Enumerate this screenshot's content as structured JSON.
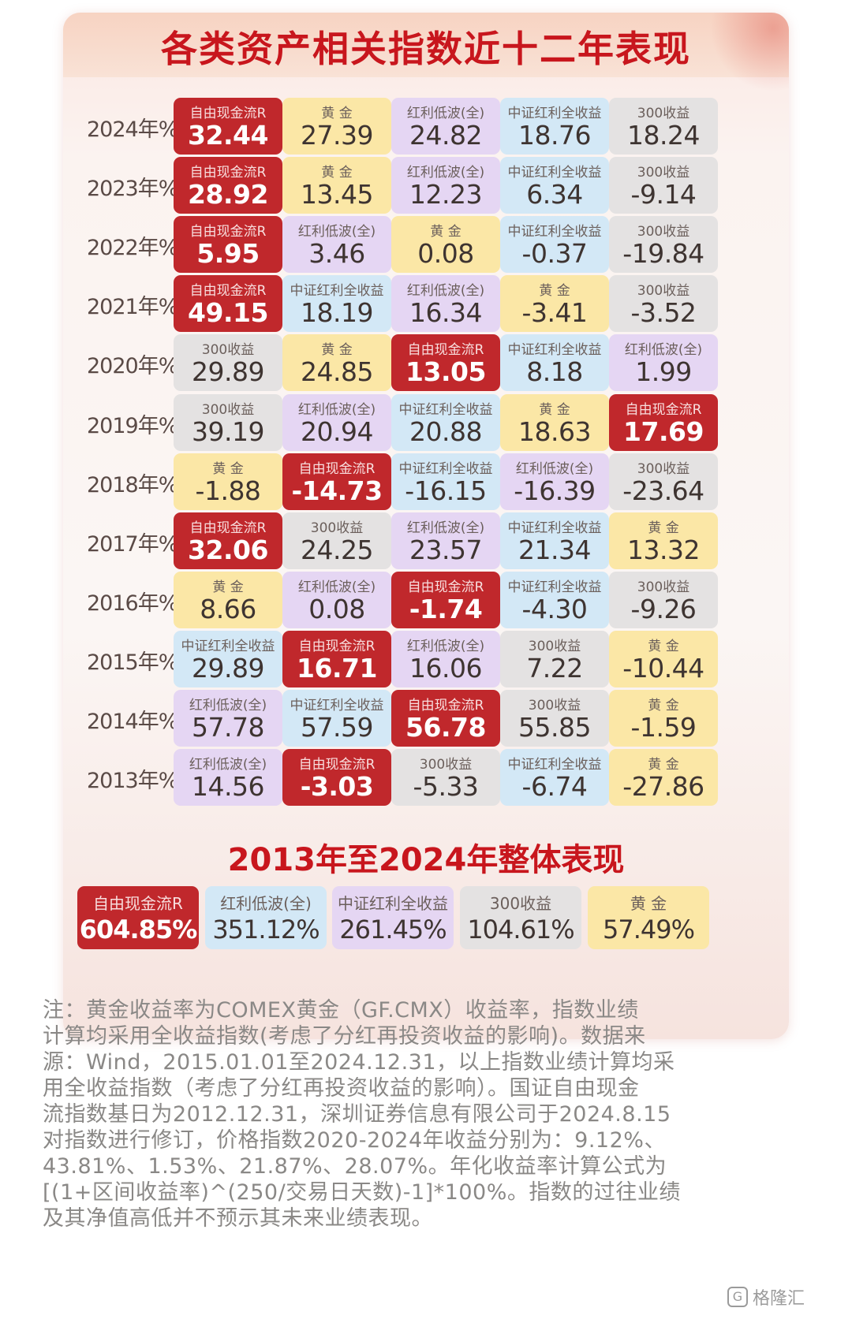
{
  "title": "各类资产相关指数近十二年表现",
  "rows": [
    {
      "year": "2024年%",
      "cells": [
        {
          "name": "自由现金流R",
          "value": "32.44",
          "color": "red"
        },
        {
          "name": "黄 金",
          "value": "27.39",
          "color": "gold"
        },
        {
          "name": "红利低波(全)",
          "value": "24.82",
          "color": "purple"
        },
        {
          "name": "中证红利全收益",
          "value": "18.76",
          "color": "blue"
        },
        {
          "name": "300收益",
          "value": "18.24",
          "color": "gray"
        }
      ]
    },
    {
      "year": "2023年%",
      "cells": [
        {
          "name": "自由现金流R",
          "value": "28.92",
          "color": "red"
        },
        {
          "name": "黄 金",
          "value": "13.45",
          "color": "gold"
        },
        {
          "name": "红利低波(全)",
          "value": "12.23",
          "color": "purple"
        },
        {
          "name": "中证红利全收益",
          "value": "6.34",
          "color": "blue"
        },
        {
          "name": "300收益",
          "value": "-9.14",
          "color": "gray"
        }
      ]
    },
    {
      "year": "2022年%",
      "cells": [
        {
          "name": "自由现金流R",
          "value": "5.95",
          "color": "red"
        },
        {
          "name": "红利低波(全)",
          "value": "3.46",
          "color": "purple"
        },
        {
          "name": "黄 金",
          "value": "0.08",
          "color": "gold"
        },
        {
          "name": "中证红利全收益",
          "value": "-0.37",
          "color": "blue"
        },
        {
          "name": "300收益",
          "value": "-19.84",
          "color": "gray"
        }
      ]
    },
    {
      "year": "2021年%",
      "cells": [
        {
          "name": "自由现金流R",
          "value": "49.15",
          "color": "red"
        },
        {
          "name": "中证红利全收益",
          "value": "18.19",
          "color": "blue"
        },
        {
          "name": "红利低波(全)",
          "value": "16.34",
          "color": "purple"
        },
        {
          "name": "黄 金",
          "value": "-3.41",
          "color": "gold"
        },
        {
          "name": "300收益",
          "value": "-3.52",
          "color": "gray"
        }
      ]
    },
    {
      "year": "2020年%",
      "cells": [
        {
          "name": "300收益",
          "value": "29.89",
          "color": "gray"
        },
        {
          "name": "黄 金",
          "value": "24.85",
          "color": "gold"
        },
        {
          "name": "自由现金流R",
          "value": "13.05",
          "color": "red"
        },
        {
          "name": "中证红利全收益",
          "value": "8.18",
          "color": "blue"
        },
        {
          "name": "红利低波(全)",
          "value": "1.99",
          "color": "purple"
        }
      ]
    },
    {
      "year": "2019年%",
      "cells": [
        {
          "name": "300收益",
          "value": "39.19",
          "color": "gray"
        },
        {
          "name": "红利低波(全)",
          "value": "20.94",
          "color": "purple"
        },
        {
          "name": "中证红利全收益",
          "value": "20.88",
          "color": "blue"
        },
        {
          "name": "黄 金",
          "value": "18.63",
          "color": "gold"
        },
        {
          "name": "自由现金流R",
          "value": "17.69",
          "color": "red"
        }
      ]
    },
    {
      "year": "2018年%",
      "cells": [
        {
          "name": "黄 金",
          "value": "-1.88",
          "color": "gold"
        },
        {
          "name": "自由现金流R",
          "value": "-14.73",
          "color": "red"
        },
        {
          "name": "中证红利全收益",
          "value": "-16.15",
          "color": "blue"
        },
        {
          "name": "红利低波(全)",
          "value": "-16.39",
          "color": "purple"
        },
        {
          "name": "300收益",
          "value": "-23.64",
          "color": "gray"
        }
      ]
    },
    {
      "year": "2017年%",
      "cells": [
        {
          "name": "自由现金流R",
          "value": "32.06",
          "color": "red"
        },
        {
          "name": "300收益",
          "value": "24.25",
          "color": "gray"
        },
        {
          "name": "红利低波(全)",
          "value": "23.57",
          "color": "purple"
        },
        {
          "name": "中证红利全收益",
          "value": "21.34",
          "color": "blue"
        },
        {
          "name": "黄 金",
          "value": "13.32",
          "color": "gold"
        }
      ]
    },
    {
      "year": "2016年%",
      "cells": [
        {
          "name": "黄 金",
          "value": "8.66",
          "color": "gold"
        },
        {
          "name": "红利低波(全)",
          "value": "0.08",
          "color": "purple"
        },
        {
          "name": "自由现金流R",
          "value": "-1.74",
          "color": "red"
        },
        {
          "name": "中证红利全收益",
          "value": "-4.30",
          "color": "blue"
        },
        {
          "name": "300收益",
          "value": "-9.26",
          "color": "gray"
        }
      ]
    },
    {
      "year": "2015年%",
      "cells": [
        {
          "name": "中证红利全收益",
          "value": "29.89",
          "color": "blue"
        },
        {
          "name": "自由现金流R",
          "value": "16.71",
          "color": "red"
        },
        {
          "name": "红利低波(全)",
          "value": "16.06",
          "color": "purple"
        },
        {
          "name": "300收益",
          "value": "7.22",
          "color": "gray"
        },
        {
          "name": "黄 金",
          "value": "-10.44",
          "color": "gold"
        }
      ]
    },
    {
      "year": "2014年%",
      "cells": [
        {
          "name": "红利低波(全)",
          "value": "57.78",
          "color": "purple"
        },
        {
          "name": "中证红利全收益",
          "value": "57.59",
          "color": "blue"
        },
        {
          "name": "自由现金流R",
          "value": "56.78",
          "color": "red"
        },
        {
          "name": "300收益",
          "value": "55.85",
          "color": "gray"
        },
        {
          "name": "黄 金",
          "value": "-1.59",
          "color": "gold"
        }
      ]
    },
    {
      "year": "2013年%",
      "cells": [
        {
          "name": "红利低波(全)",
          "value": "14.56",
          "color": "purple"
        },
        {
          "name": "自由现金流R",
          "value": "-3.03",
          "color": "red"
        },
        {
          "name": "300收益",
          "value": "-5.33",
          "color": "gray"
        },
        {
          "name": "中证红利全收益",
          "value": "-6.74",
          "color": "blue"
        },
        {
          "name": "黄 金",
          "value": "-27.86",
          "color": "gold"
        }
      ]
    }
  ],
  "overall": {
    "title": "2013年至2024年整体表现",
    "cells": [
      {
        "name": "自由现金流R",
        "value": "604.85%",
        "color": "red"
      },
      {
        "name": "红利低波(全)",
        "value": "351.12%",
        "color": "blue"
      },
      {
        "name": "中证红利全收益",
        "value": "261.45%",
        "color": "purple"
      },
      {
        "name": "300收益",
        "value": "104.61%",
        "color": "gray"
      },
      {
        "name": "黄 金",
        "value": "57.49%",
        "color": "gold"
      }
    ]
  },
  "note_lines": [
    "注：黄金收益率为COMEX黄金（GF.CMX）收益率，指数业绩",
    "计算均采用全收益指数(考虑了分红再投资收益的影响)。数据来",
    "源：Wind，2015.01.01至2024.12.31，以上指数业绩计算均采",
    "用全收益指数（考虑了分红再投资收益的影响）。国证自由现金",
    "流指数基日为2012.12.31，深圳证券信息有限公司于2024.8.15",
    "对指数进行修订，价格指数2020-2024年收益分别为：9.12%、",
    "43.81%、1.53%、21.87%、28.07%。年化收益率计算公式为",
    "[(1+区间收益率)^(250/交易日天数)-1]*100%。指数的过往业绩",
    "及其净值高低并不预示其未来业绩表现。"
  ],
  "watermark": {
    "text": "格隆汇",
    "icon": "gelonghui-logo-icon"
  }
}
